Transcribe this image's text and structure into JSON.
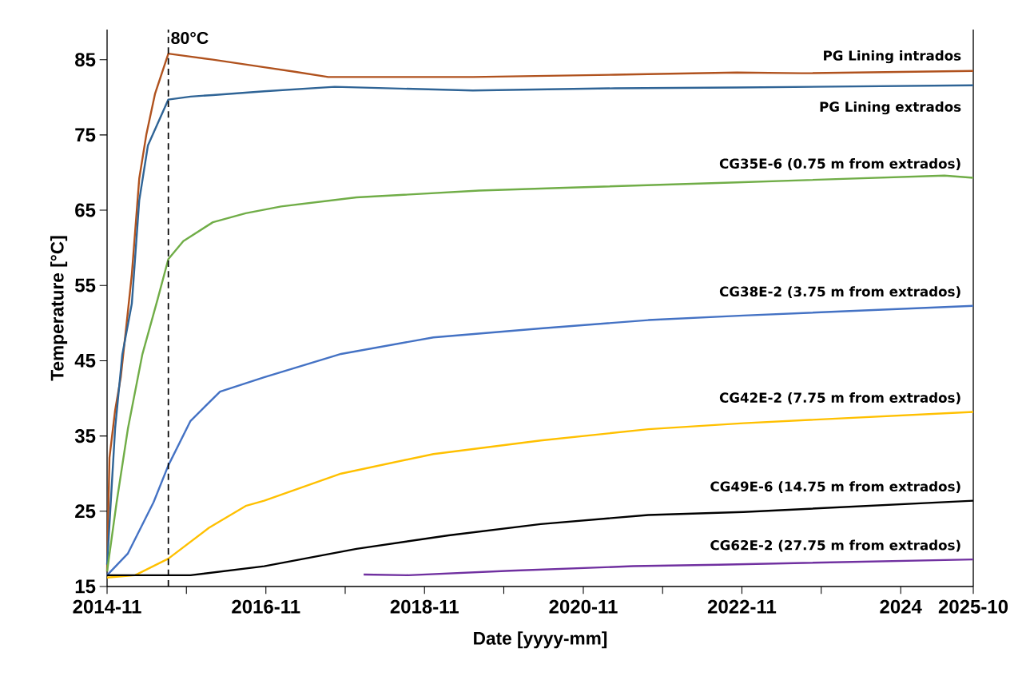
{
  "chart_data": {
    "type": "line",
    "xlabel": "Date [yyyy-mm]",
    "ylabel": "Temperature [°C]",
    "xlim": [
      "2014-11",
      "2025-10"
    ],
    "ylim": [
      15,
      89
    ],
    "xticks": [
      {
        "value": "2014-11",
        "label": "2014-11"
      },
      {
        "value": "2015-11",
        "label": null
      },
      {
        "value": "2016-11",
        "label": "2016-11"
      },
      {
        "value": "2017-11",
        "label": null
      },
      {
        "value": "2018-11",
        "label": "2018-11"
      },
      {
        "value": "2019-11",
        "label": null
      },
      {
        "value": "2020-11",
        "label": "2020-11"
      },
      {
        "value": "2021-11",
        "label": null
      },
      {
        "value": "2022-11",
        "label": "2022-11"
      },
      {
        "value": "2023-11",
        "label": null
      },
      {
        "value": "2024-11",
        "label": "2024"
      },
      {
        "value": "2025-10",
        "label": "2025-10"
      }
    ],
    "yticks": [
      15,
      25,
      35,
      45,
      55,
      65,
      75,
      85
    ],
    "grid": false,
    "legend": false,
    "marker": "none",
    "ref_lines": [
      {
        "axis": "x",
        "value": "2015-08-10",
        "label": "80°C",
        "color": "#000000",
        "line_style": "dashed"
      }
    ],
    "series": [
      {
        "name": "PG Lining intrados",
        "color": "#b0521e",
        "x": [
          "2014-11-01",
          "2014-11-12",
          "2014-12-08",
          "2015-01-03",
          "2015-01-29",
          "2015-02-23",
          "2015-03-29",
          "2015-05-01",
          "2015-06-10",
          "2015-08-10",
          "2015-11-20",
          "2016-03-02",
          "2016-10-24",
          "2017-03-13",
          "2017-08-15",
          "2019-06-11",
          "2021-03-25",
          "2022-10-09",
          "2023-08-01",
          "2025-10"
        ],
        "values": [
          17.0,
          32.1,
          38.4,
          42.8,
          49.7,
          56.5,
          69.2,
          75.1,
          80.5,
          85.8,
          85.4,
          85.0,
          84.0,
          83.4,
          82.7,
          82.7,
          83.0,
          83.3,
          83.2,
          83.5
        ]
      },
      {
        "name": "PG Lining extrados",
        "color": "#2f6496",
        "x": [
          "2014-11-01",
          "2014-12-08",
          "2015-01-10",
          "2015-02-23",
          "2015-03-29",
          "2015-05-08",
          "2015-08-10",
          "2015-11-20",
          "2016-03-02",
          "2016-10-24",
          "2017-09-14",
          "2019-06-11",
          "2021-03-25",
          "2022-10-09",
          "2025-10"
        ],
        "values": [
          17.9,
          36.0,
          45.8,
          52.6,
          66.3,
          73.6,
          79.7,
          80.1,
          80.3,
          80.8,
          81.4,
          80.9,
          81.2,
          81.3,
          81.6
        ]
      },
      {
        "name": "CG35E-6 (0.75 m from extrados)",
        "color": "#70ad47",
        "x": [
          "2014-11-01",
          "2014-12-15",
          "2015-02-05",
          "2015-04-12",
          "2015-06-21",
          "2015-08-10",
          "2015-10-18",
          "2016-03-02",
          "2016-07-31",
          "2017-01-10",
          "2017-12-23",
          "2019-07-10",
          "2020-09-07",
          "2022-10-09",
          "2025-05-21",
          "2025-10"
        ],
        "values": [
          17.0,
          26.2,
          36.0,
          45.8,
          53.1,
          58.5,
          60.9,
          63.4,
          64.6,
          65.5,
          66.7,
          67.6,
          68.0,
          68.7,
          69.6,
          69.3
        ]
      },
      {
        "name": "CG38E-2 (3.75 m from extrados)",
        "color": "#4472c4",
        "x": [
          "2014-11-01",
          "2015-02-05",
          "2015-06-03",
          "2015-08-10",
          "2015-11-20",
          "2016-04-04",
          "2016-10-24",
          "2017-10-13",
          "2018-12-12",
          "2020-04-19",
          "2021-08-27",
          "2022-11-08",
          "2025-10"
        ],
        "values": [
          16.5,
          19.4,
          26.2,
          31.1,
          37.0,
          40.9,
          42.8,
          45.9,
          48.1,
          49.3,
          50.4,
          51.0,
          52.3
        ]
      },
      {
        "name": "CG42E-2 (7.75 m from extrados)",
        "color": "#ffc000",
        "x": [
          "2014-11-01",
          "2015-03-10",
          "2015-08-10",
          "2016-02-13",
          "2016-07-31",
          "2016-10-24",
          "2017-10-13",
          "2018-12-12",
          "2020-04-19",
          "2021-08-27",
          "2022-11-08",
          "2025-10"
        ],
        "values": [
          16.2,
          16.5,
          18.7,
          22.8,
          25.7,
          26.4,
          30.0,
          32.6,
          34.4,
          35.9,
          36.7,
          38.2
        ]
      },
      {
        "name": "CG49E-6 (14.75 m from extrados)",
        "color": "#000000",
        "x": [
          "2014-11-01",
          "2015-11-20",
          "2016-10-24",
          "2017-12-23",
          "2019-02-20",
          "2020-04-19",
          "2021-08-27",
          "2022-11-08",
          "2025-10"
        ],
        "values": [
          16.5,
          16.5,
          17.7,
          20.0,
          21.8,
          23.3,
          24.5,
          24.9,
          26.4
        ]
      },
      {
        "name": "CG62E-2 (27.75 m from extrados)",
        "color": "#7030a0",
        "x": [
          "2018-01-25",
          "2018-08-19",
          "2019-12-01",
          "2021-06-18",
          "2022-07-16",
          "2025-10"
        ],
        "values": [
          16.6,
          16.5,
          17.1,
          17.7,
          17.9,
          18.6
        ]
      }
    ]
  }
}
